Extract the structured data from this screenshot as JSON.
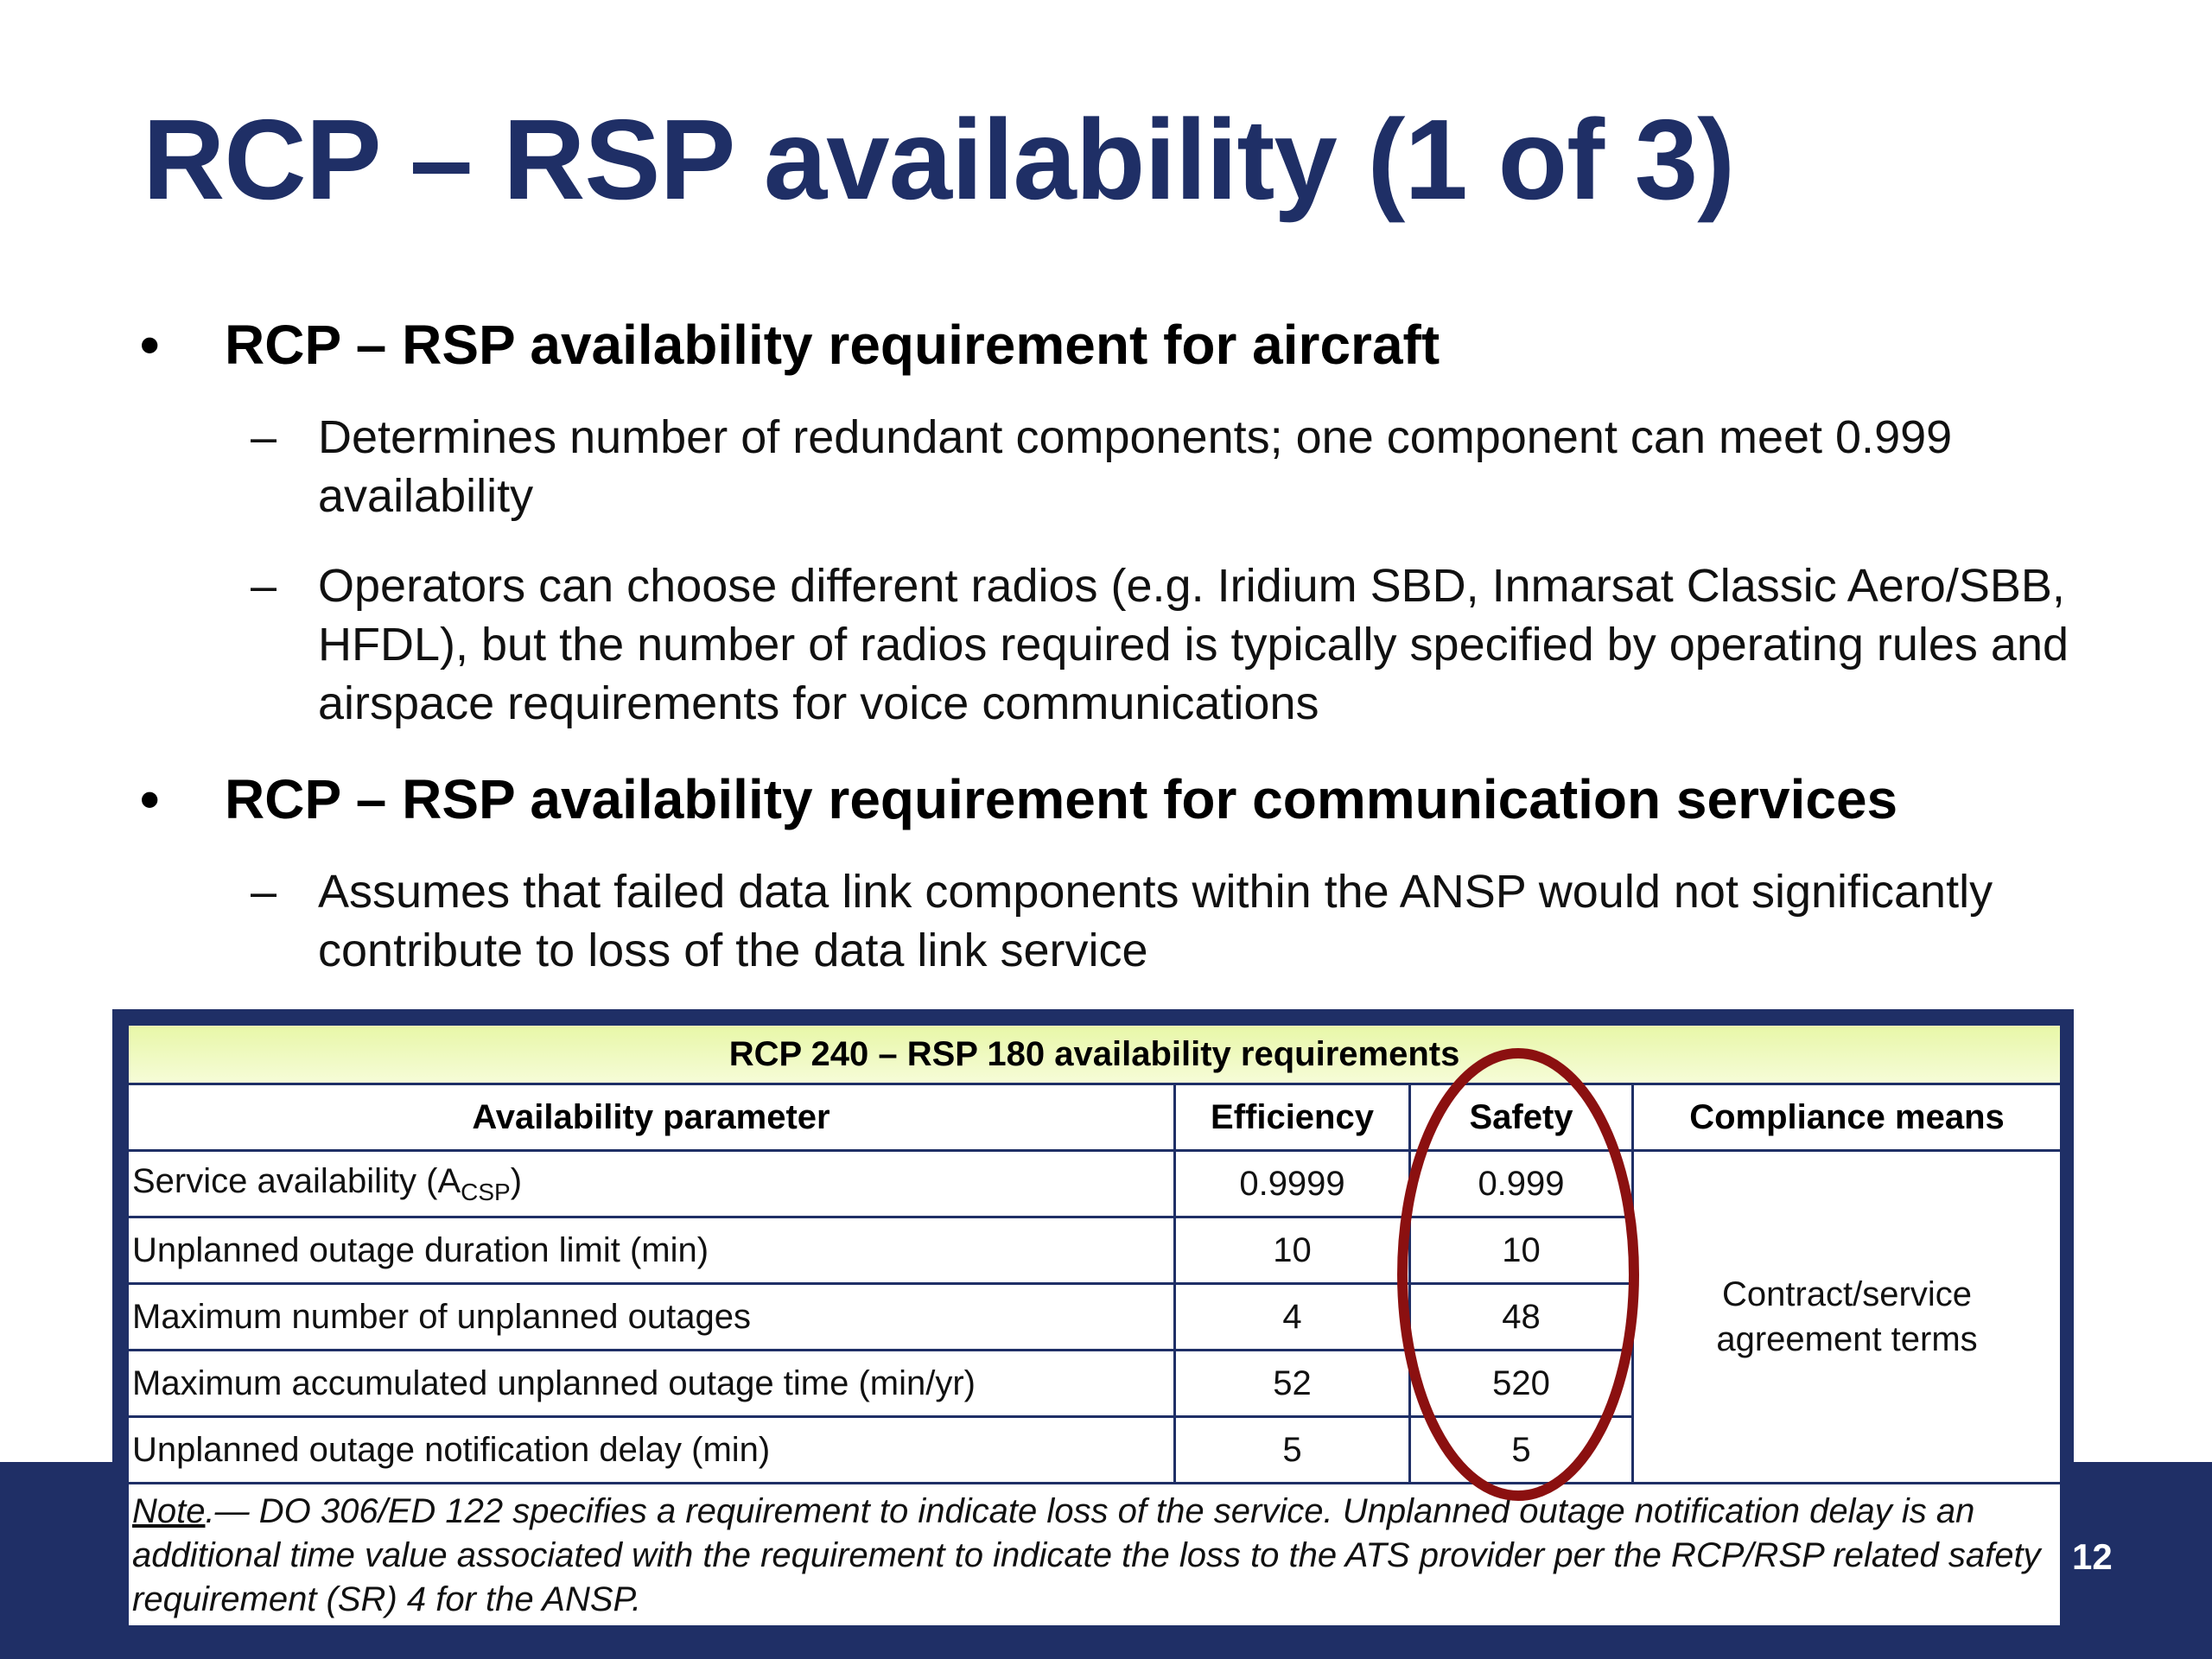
{
  "slide": {
    "title": "RCP – RSP availability (1 of 3)",
    "page_number": "12"
  },
  "bullets": [
    {
      "marker": "•",
      "text": "RCP – RSP availability requirement for aircraft",
      "sub": [
        {
          "marker": "–",
          "text": "Determines number of redundant components; one component can meet 0.999 availability"
        },
        {
          "marker": "–",
          "text": "Operators can choose different radios (e.g. Iridium SBD, Inmarsat Classic Aero/SBB, HFDL), but the number of radios required is typically specified by operating rules and airspace requirements for voice communications"
        }
      ]
    },
    {
      "marker": "•",
      "text": "RCP – RSP availability requirement for communication services",
      "sub": [
        {
          "marker": "–",
          "text": "Assumes that failed data link components within the ANSP would not significantly contribute to loss of the data link service"
        }
      ]
    }
  ],
  "table": {
    "caption": "RCP 240 – RSP 180 availability requirements",
    "headers": [
      "Availability parameter",
      "Efficiency",
      "Safety",
      "Compliance means"
    ],
    "rows": [
      {
        "parameter": "Service availability (A",
        "parameter_sub": "CSP",
        "parameter_tail": ")",
        "efficiency": "0.9999",
        "safety": "0.999"
      },
      {
        "parameter": "Unplanned outage duration limit (min)",
        "efficiency": "10",
        "safety": "10"
      },
      {
        "parameter": "Maximum number of unplanned outages",
        "efficiency": "4",
        "safety": "48"
      },
      {
        "parameter": "Maximum accumulated unplanned outage time (min/yr)",
        "efficiency": "52",
        "safety": "520"
      },
      {
        "parameter": "Unplanned outage notification delay (min)",
        "efficiency": "5",
        "safety": "5"
      }
    ],
    "compliance_means": "Contract/service agreement terms",
    "note_label": "Note",
    "note_text": ".— DO 306/ED 122 specifies a requirement to indicate loss of the service.  Unplanned outage notification delay is an additional time value associated with the requirement to indicate the loss to the ATS provider per the RCP/RSP related safety requirement (SR) 4 for the ANSP."
  },
  "colors": {
    "title_navy": "#1f2f66",
    "caption_fill": "#eaf8b0",
    "highlight_ellipse": "#8b1010"
  }
}
